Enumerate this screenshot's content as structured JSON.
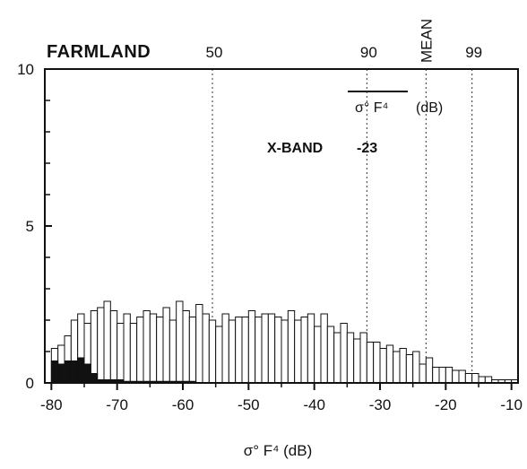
{
  "chart_data": {
    "type": "bar",
    "title": "FARMLAND",
    "xlabel": "σ° F⁴ (dB)",
    "ylabel": "",
    "xlim": [
      -81,
      -9
    ],
    "ylim": [
      0,
      10
    ],
    "x_ticks": [
      "-80",
      "-70",
      "-60",
      "-50",
      "-40",
      "-30",
      "-20",
      "-10"
    ],
    "y_ticks": [
      "0",
      "5",
      "10"
    ],
    "bin_width": 1,
    "bin_starts": [
      -80,
      -79,
      -78,
      -77,
      -76,
      -75,
      -74,
      -73,
      -72,
      -71,
      -70,
      -69,
      -68,
      -67,
      -66,
      -65,
      -64,
      -63,
      -62,
      -61,
      -60,
      -59,
      -58,
      -57,
      -56,
      -55,
      -54,
      -53,
      -52,
      -51,
      -50,
      -49,
      -48,
      -47,
      -46,
      -45,
      -44,
      -43,
      -42,
      -41,
      -40,
      -39,
      -38,
      -37,
      -36,
      -35,
      -34,
      -33,
      -32,
      -31,
      -30,
      -29,
      -28,
      -27,
      -26,
      -25,
      -24,
      -23,
      -22,
      -21,
      -20,
      -19,
      -18,
      -17,
      -16,
      -15,
      -14,
      -13,
      -12,
      -11,
      -10
    ],
    "series": [
      {
        "name": "",
        "style": "open",
        "values": [
          1.1,
          1.2,
          1.5,
          2.0,
          2.2,
          1.9,
          2.3,
          2.4,
          2.6,
          2.3,
          1.9,
          2.2,
          1.9,
          2.1,
          2.3,
          2.2,
          2.1,
          2.4,
          2.0,
          2.6,
          2.3,
          2.1,
          2.5,
          2.2,
          2.0,
          1.8,
          2.2,
          2.0,
          2.1,
          2.1,
          2.3,
          2.1,
          2.2,
          2.2,
          2.1,
          2.0,
          2.3,
          2.0,
          2.1,
          2.2,
          1.8,
          2.2,
          1.8,
          1.6,
          1.9,
          1.6,
          1.4,
          1.6,
          1.3,
          1.3,
          1.1,
          1.2,
          1.0,
          1.1,
          0.9,
          1.0,
          0.6,
          0.8,
          0.5,
          0.5,
          0.5,
          0.4,
          0.4,
          0.3,
          0.3,
          0.2,
          0.2,
          0.1,
          0.1,
          0.1,
          0.1
        ]
      },
      {
        "name": "",
        "style": "filled",
        "values": [
          0.7,
          0.6,
          0.7,
          0.7,
          0.8,
          0.6,
          0.3,
          0.1,
          0.1,
          0.1,
          0.1,
          0.05,
          0.05,
          0.05,
          0.05,
          0.05,
          0.05,
          0.05,
          0.05,
          0.05,
          0.05,
          0.05,
          0,
          0,
          0,
          0,
          0,
          0,
          0,
          0,
          0,
          0,
          0,
          0,
          0,
          0,
          0,
          0,
          0,
          0,
          0,
          0,
          0,
          0,
          0,
          0,
          0,
          0,
          0,
          0,
          0,
          0,
          0,
          0,
          0,
          0,
          0,
          0,
          0,
          0,
          0,
          0,
          0,
          0,
          0,
          0,
          0,
          0,
          0,
          0,
          0
        ]
      }
    ],
    "percentile_markers": [
      {
        "label": "50",
        "x": -55.5
      },
      {
        "label": "90",
        "x": -32
      },
      {
        "label": "MEAN",
        "x": -23
      },
      {
        "label": "99",
        "x": -16
      }
    ],
    "annotation": {
      "overline_text": "σ°  F⁴",
      "unit": "(dB)",
      "band": "X-BAND",
      "value": "-23"
    },
    "grid": false,
    "legend": "none"
  }
}
